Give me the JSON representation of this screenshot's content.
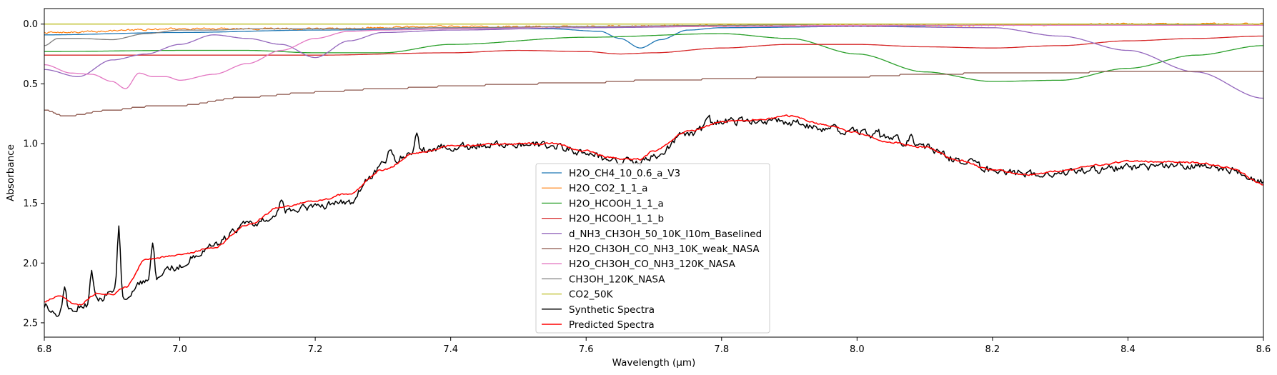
{
  "chart_data": {
    "type": "line",
    "title": "",
    "xlabel": "Wavelength (μm)",
    "ylabel": "Absorbance",
    "xlim": [
      6.8,
      8.6
    ],
    "ylim": [
      2.62,
      -0.13
    ],
    "y_inverted": true,
    "grid": false,
    "legend_position": "lower-center",
    "x_ticks": [
      6.8,
      7.0,
      7.2,
      7.4,
      7.6,
      7.8,
      8.0,
      8.2,
      8.4,
      8.6
    ],
    "x_tick_labels": [
      "6.8",
      "7.0",
      "7.2",
      "7.4",
      "7.6",
      "7.8",
      "8.0",
      "8.2",
      "8.4",
      "8.6"
    ],
    "y_ticks": [
      0.0,
      0.5,
      1.0,
      1.5,
      2.0,
      2.5
    ],
    "y_tick_labels": [
      "0.0",
      "0.5",
      "1.0",
      "1.5",
      "2.0",
      "2.5"
    ],
    "series": [
      {
        "name": "H2O_CH4_10_0.6_a_V3",
        "color": "#1f77b4",
        "width": 1.3,
        "x": [
          6.8,
          7.0,
          7.2,
          7.4,
          7.55,
          7.62,
          7.65,
          7.68,
          7.71,
          7.75,
          7.8,
          8.0,
          8.2,
          8.4,
          8.6
        ],
        "y": [
          0.09,
          0.07,
          0.05,
          0.04,
          0.04,
          0.06,
          0.12,
          0.2,
          0.13,
          0.05,
          0.03,
          0.02,
          0.01,
          0.01,
          0.0
        ]
      },
      {
        "name": "H2O_CO2_1_1_a",
        "color": "#ff7f0e",
        "width": 1.2,
        "x": [
          6.8,
          7.0,
          7.2,
          7.4,
          7.6,
          7.8,
          8.0,
          8.2,
          8.4,
          8.6
        ],
        "y": [
          0.07,
          0.04,
          0.04,
          0.02,
          0.02,
          0.01,
          0.01,
          0.01,
          0.0,
          0.0
        ],
        "noise": 0.012
      },
      {
        "name": "H2O_HCOOH_1_1_a",
        "color": "#2ca02c",
        "width": 1.3,
        "x": [
          6.8,
          7.0,
          7.1,
          7.2,
          7.3,
          7.4,
          7.6,
          7.8,
          7.9,
          8.0,
          8.1,
          8.2,
          8.3,
          8.4,
          8.5,
          8.6
        ],
        "y": [
          0.23,
          0.22,
          0.22,
          0.24,
          0.24,
          0.17,
          0.11,
          0.08,
          0.12,
          0.25,
          0.4,
          0.48,
          0.47,
          0.37,
          0.26,
          0.18
        ]
      },
      {
        "name": "H2O_HCOOH_1_1_b",
        "color": "#d62728",
        "width": 1.3,
        "x": [
          6.8,
          7.0,
          7.2,
          7.4,
          7.5,
          7.6,
          7.65,
          7.7,
          7.8,
          7.9,
          8.0,
          8.1,
          8.2,
          8.3,
          8.4,
          8.5,
          8.6
        ],
        "y": [
          0.26,
          0.26,
          0.26,
          0.24,
          0.22,
          0.23,
          0.25,
          0.24,
          0.2,
          0.17,
          0.17,
          0.19,
          0.2,
          0.18,
          0.14,
          0.12,
          0.1
        ]
      },
      {
        "name": "d_NH3_CH3OH_50_10K_I10m_Baselined",
        "color": "#9467bd",
        "width": 1.3,
        "x": [
          6.8,
          6.85,
          6.9,
          6.95,
          7.0,
          7.05,
          7.1,
          7.15,
          7.2,
          7.25,
          7.3,
          7.4,
          7.6,
          7.8,
          8.0,
          8.2,
          8.3,
          8.4,
          8.5,
          8.6
        ],
        "y": [
          0.38,
          0.44,
          0.3,
          0.25,
          0.17,
          0.09,
          0.12,
          0.17,
          0.28,
          0.14,
          0.07,
          0.05,
          0.03,
          0.02,
          0.02,
          0.03,
          0.1,
          0.22,
          0.4,
          0.62
        ]
      },
      {
        "name": "H2O_CH3OH_CO_NH3_10K_weak_NASA",
        "color": "#8c564b",
        "width": 1.3,
        "x": [
          6.8,
          6.83,
          6.9,
          6.95,
          7.0,
          7.1,
          7.2,
          7.3,
          7.4,
          7.5,
          7.6,
          7.7,
          7.8,
          7.9,
          8.0,
          8.1,
          8.2,
          8.4,
          8.6
        ],
        "y": [
          0.72,
          0.77,
          0.72,
          0.69,
          0.68,
          0.61,
          0.57,
          0.54,
          0.52,
          0.5,
          0.49,
          0.47,
          0.46,
          0.44,
          0.44,
          0.42,
          0.41,
          0.4,
          0.4
        ],
        "step": 0.012
      },
      {
        "name": "H2O_CH3OH_CO_NH3_120K_NASA",
        "color": "#e377c2",
        "width": 1.3,
        "x": [
          6.8,
          6.84,
          6.87,
          6.9,
          6.92,
          6.94,
          6.96,
          6.98,
          7.0,
          7.05,
          7.1,
          7.15,
          7.2,
          7.25,
          7.3,
          7.4,
          7.6,
          7.8,
          8.0,
          8.2,
          8.4,
          8.6
        ],
        "y": [
          0.34,
          0.41,
          0.42,
          0.48,
          0.54,
          0.41,
          0.44,
          0.44,
          0.47,
          0.42,
          0.33,
          0.22,
          0.12,
          0.06,
          0.05,
          0.04,
          0.02,
          0.02,
          0.01,
          0.01,
          0.01,
          0.01
        ]
      },
      {
        "name": "CH3OH_120K_NASA",
        "color": "#7f7f7f",
        "width": 1.3,
        "x": [
          6.8,
          6.82,
          6.85,
          6.9,
          6.95,
          7.0,
          7.05,
          7.1,
          7.2,
          7.4,
          7.6,
          7.8,
          8.0,
          8.2,
          8.4,
          8.6
        ],
        "y": [
          0.18,
          0.12,
          0.12,
          0.13,
          0.08,
          0.05,
          0.05,
          0.04,
          0.04,
          0.03,
          0.02,
          0.01,
          0.0,
          0.0,
          0.0,
          0.0
        ]
      },
      {
        "name": "CO2_50K",
        "color": "#bcbd22",
        "width": 1.3,
        "x": [
          6.8,
          7.0,
          7.4,
          7.8,
          8.2,
          8.6
        ],
        "y": [
          0.0,
          0.0,
          0.0,
          0.0,
          0.0,
          0.0
        ]
      },
      {
        "name": "Synthetic Spectra",
        "color": "#000000",
        "width": 1.5,
        "x": [
          6.8,
          6.82,
          6.84,
          6.86,
          6.88,
          6.9,
          6.92,
          6.95,
          7.0,
          7.02,
          7.05,
          7.1,
          7.15,
          7.2,
          7.25,
          7.28,
          7.3,
          7.35,
          7.4,
          7.5,
          7.55,
          7.6,
          7.63,
          7.65,
          7.68,
          7.7,
          7.75,
          7.8,
          7.85,
          7.9,
          7.95,
          8.0,
          8.05,
          8.1,
          8.15,
          8.2,
          8.25,
          8.3,
          8.35,
          8.4,
          8.45,
          8.5,
          8.55,
          8.6
        ],
        "y": [
          2.36,
          2.42,
          2.4,
          2.35,
          2.3,
          2.25,
          2.28,
          2.15,
          2.03,
          1.95,
          1.83,
          1.68,
          1.58,
          1.53,
          1.49,
          1.3,
          1.17,
          1.06,
          1.03,
          1.0,
          1.02,
          1.08,
          1.12,
          1.15,
          1.16,
          1.1,
          0.92,
          0.82,
          0.81,
          0.82,
          0.87,
          0.9,
          0.96,
          1.03,
          1.14,
          1.22,
          1.25,
          1.24,
          1.22,
          1.2,
          1.19,
          1.18,
          1.22,
          1.32
        ],
        "noise": 0.05,
        "spikes": [
          [
            6.91,
            1.7
          ],
          [
            6.96,
            1.85
          ],
          [
            6.87,
            2.1
          ],
          [
            6.83,
            2.22
          ],
          [
            7.35,
            0.9
          ],
          [
            7.31,
            1.05
          ],
          [
            7.15,
            1.45
          ],
          [
            7.78,
            0.76
          ],
          [
            8.03,
            0.88
          ],
          [
            8.08,
            0.9
          ]
        ]
      },
      {
        "name": "Predicted Spectra",
        "color": "#ff0000",
        "width": 1.5,
        "x": [
          6.8,
          6.82,
          6.85,
          6.88,
          6.9,
          6.92,
          6.95,
          7.0,
          7.05,
          7.1,
          7.15,
          7.2,
          7.25,
          7.3,
          7.35,
          7.4,
          7.5,
          7.55,
          7.6,
          7.63,
          7.65,
          7.68,
          7.7,
          7.75,
          7.8,
          7.85,
          7.9,
          7.95,
          8.0,
          8.05,
          8.1,
          8.15,
          8.2,
          8.25,
          8.3,
          8.35,
          8.4,
          8.45,
          8.5,
          8.55,
          8.6
        ],
        "y": [
          2.32,
          2.28,
          2.35,
          2.25,
          2.26,
          2.2,
          1.97,
          1.93,
          1.87,
          1.68,
          1.53,
          1.48,
          1.42,
          1.22,
          1.08,
          1.02,
          1.0,
          1.0,
          1.06,
          1.11,
          1.13,
          1.13,
          1.06,
          0.9,
          0.82,
          0.8,
          0.77,
          0.84,
          0.91,
          0.99,
          1.03,
          1.14,
          1.22,
          1.26,
          1.23,
          1.18,
          1.15,
          1.15,
          1.16,
          1.2,
          1.34
        ],
        "noise": 0.012
      }
    ]
  }
}
